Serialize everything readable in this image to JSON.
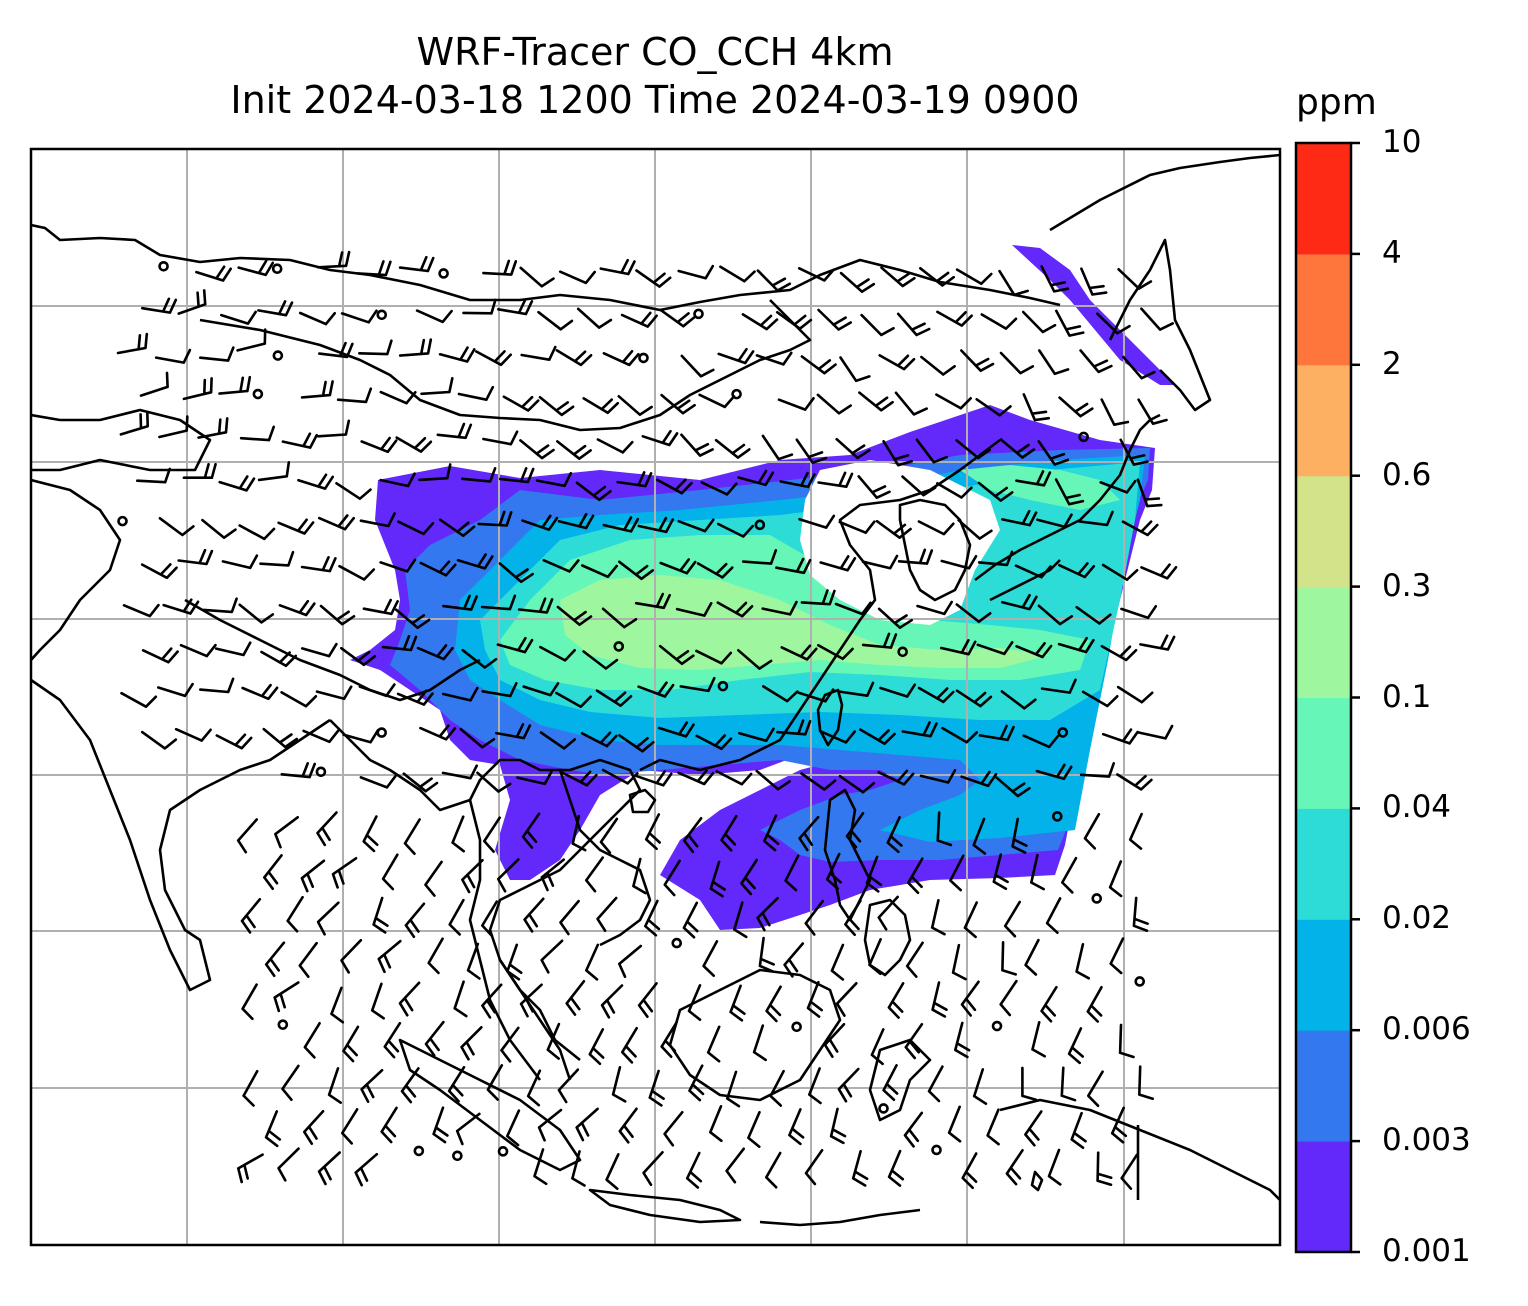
{
  "title": {
    "line1": "WRF-Tracer CO_CCH 4km",
    "line2": "Init 2024-03-18 1200 Time 2024-03-19 0900"
  },
  "colorbar": {
    "unit": "ppm",
    "levels": [
      "0.001",
      "0.003",
      "0.006",
      "0.02",
      "0.04",
      "0.1",
      "0.3",
      "0.6",
      "2",
      "4",
      "10"
    ],
    "colors": [
      "#6328fa",
      "#3478f0",
      "#02b2e8",
      "#2ddcd6",
      "#66f7b8",
      "#9ef79e",
      "#d2e389",
      "#feb062",
      "#ff763d",
      "#ff2a16"
    ]
  },
  "map": {
    "frame_color": "#000000",
    "gridline_color": "#b0b0b0",
    "coastline_color": "#000000",
    "barb_color": "#000000"
  }
}
